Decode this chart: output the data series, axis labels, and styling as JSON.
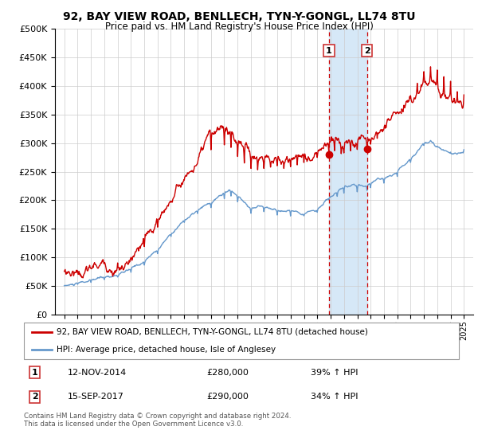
{
  "title": "92, BAY VIEW ROAD, BENLLECH, TYN-Y-GONGL, LL74 8TU",
  "subtitle": "Price paid vs. HM Land Registry's House Price Index (HPI)",
  "legend_line1": "92, BAY VIEW ROAD, BENLLECH, TYN-Y-GONGL, LL74 8TU (detached house)",
  "legend_line2": "HPI: Average price, detached house, Isle of Anglesey",
  "annotation1_label": "1",
  "annotation1_date": "12-NOV-2014",
  "annotation1_price": "£280,000",
  "annotation1_hpi": "39% ↑ HPI",
  "annotation2_label": "2",
  "annotation2_date": "15-SEP-2017",
  "annotation2_price": "£290,000",
  "annotation2_hpi": "34% ↑ HPI",
  "footer": "Contains HM Land Registry data © Crown copyright and database right 2024.\nThis data is licensed under the Open Government Licence v3.0.",
  "red_color": "#cc0000",
  "blue_color": "#6699cc",
  "shade_color": "#d6e8f7",
  "marker1_year": 2014.87,
  "marker2_year": 2017.72,
  "marker1_red_val": 280000,
  "marker2_red_val": 290000,
  "ylim_max": 500000,
  "background_color": "#ffffff",
  "hpi_keypoints": [
    [
      1995.0,
      50000
    ],
    [
      1996.0,
      52000
    ],
    [
      1997.0,
      55000
    ],
    [
      1998.0,
      60000
    ],
    [
      1999.0,
      65000
    ],
    [
      2000.0,
      72000
    ],
    [
      2001.0,
      85000
    ],
    [
      2002.0,
      105000
    ],
    [
      2003.0,
      135000
    ],
    [
      2004.0,
      160000
    ],
    [
      2005.0,
      175000
    ],
    [
      2006.0,
      185000
    ],
    [
      2007.0,
      200000
    ],
    [
      2007.5,
      205000
    ],
    [
      2008.0,
      195000
    ],
    [
      2009.0,
      175000
    ],
    [
      2010.0,
      178000
    ],
    [
      2011.0,
      172000
    ],
    [
      2012.0,
      170000
    ],
    [
      2013.0,
      172000
    ],
    [
      2014.0,
      178000
    ],
    [
      2014.87,
      200000
    ],
    [
      2015.5,
      205000
    ],
    [
      2016.0,
      210000
    ],
    [
      2017.0,
      212000
    ],
    [
      2017.72,
      215000
    ],
    [
      2018.0,
      220000
    ],
    [
      2019.0,
      228000
    ],
    [
      2020.0,
      240000
    ],
    [
      2021.0,
      265000
    ],
    [
      2022.0,
      295000
    ],
    [
      2022.5,
      305000
    ],
    [
      2023.0,
      295000
    ],
    [
      2024.0,
      285000
    ],
    [
      2025.0,
      290000
    ]
  ],
  "red_keypoints": [
    [
      1995.0,
      75000
    ],
    [
      1996.0,
      78000
    ],
    [
      1997.0,
      82000
    ],
    [
      1998.0,
      88000
    ],
    [
      1999.0,
      93000
    ],
    [
      2000.0,
      100000
    ],
    [
      2001.0,
      115000
    ],
    [
      2002.0,
      150000
    ],
    [
      2003.0,
      195000
    ],
    [
      2004.0,
      235000
    ],
    [
      2005.0,
      265000
    ],
    [
      2006.0,
      280000
    ],
    [
      2007.0,
      290000
    ],
    [
      2007.5,
      285000
    ],
    [
      2008.0,
      270000
    ],
    [
      2008.5,
      258000
    ],
    [
      2009.0,
      250000
    ],
    [
      2009.5,
      248000
    ],
    [
      2010.0,
      252000
    ],
    [
      2010.5,
      255000
    ],
    [
      2011.0,
      258000
    ],
    [
      2011.5,
      252000
    ],
    [
      2012.0,
      255000
    ],
    [
      2012.5,
      258000
    ],
    [
      2013.0,
      262000
    ],
    [
      2013.5,
      268000
    ],
    [
      2014.0,
      272000
    ],
    [
      2014.87,
      280000
    ],
    [
      2015.3,
      282000
    ],
    [
      2015.8,
      278000
    ],
    [
      2016.0,
      280000
    ],
    [
      2016.5,
      283000
    ],
    [
      2017.0,
      285000
    ],
    [
      2017.72,
      290000
    ],
    [
      2018.0,
      295000
    ],
    [
      2018.5,
      305000
    ],
    [
      2019.0,
      325000
    ],
    [
      2019.5,
      340000
    ],
    [
      2020.0,
      355000
    ],
    [
      2020.5,
      368000
    ],
    [
      2021.0,
      385000
    ],
    [
      2021.5,
      410000
    ],
    [
      2022.0,
      430000
    ],
    [
      2022.5,
      440000
    ],
    [
      2023.0,
      435000
    ],
    [
      2023.5,
      425000
    ],
    [
      2024.0,
      415000
    ],
    [
      2024.5,
      395000
    ],
    [
      2025.0,
      390000
    ]
  ]
}
